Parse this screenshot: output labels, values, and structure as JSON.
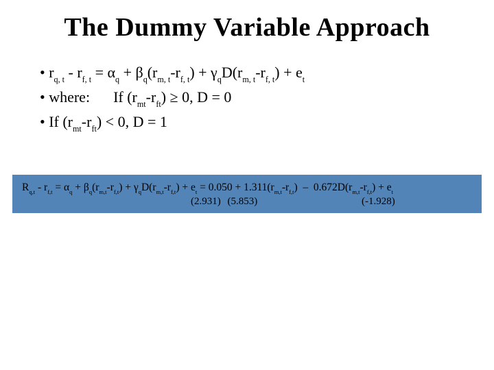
{
  "title": "The Dummy Variable Approach",
  "bullets": {
    "eq_main": "r<span class=\"sub\">q, t</span> - r<span class=\"sub\">f, t</span> = α<span class=\"sub\">q</span> + β<span class=\"sub\">q</span>(r<span class=\"sub\">m, t</span>-r<span class=\"sub\">f, t</span>) + γ<span class=\"sub\">q</span>D(r<span class=\"sub\">m, t</span>-r<span class=\"sub\">f, t</span>) + e<span class=\"sub\">t</span>",
    "where": "where:<span class=\"indent-if\">If (r<span class=\"sub\">mt</span>-r<span class=\"sub\">ft</span>) ≥ 0, D = 0</span>",
    "if2": "If (r<span class=\"sub\">mt</span>-r<span class=\"sub\">ft</span>) < 0, D = 1"
  },
  "equation_box": {
    "background_color": "#5384b7",
    "line1": "R<span class=\"subeq\">q,t</span> - r<span class=\"subeq\">f,t</span> = α<span class=\"subeq\">q</span> + β<span class=\"subeq\">q</span>(r<span class=\"subeq\">m,t</span>-r<span class=\"subeq\">f,t</span>) + γ<span class=\"subeq\">q</span>D(r<span class=\"subeq\">m,t</span>-r<span class=\"subeq\">f,t</span>) + e<span class=\"subeq\">t</span> = 0.050 + 1.311(r<span class=\"subeq\">m,t</span>-r<span class=\"subeq\">f,t</span>) &nbsp;–&nbsp; 0.672D(r<span class=\"subeq\">m,t</span>-r<span class=\"subeq\">f,t</span>) + e<span class=\"subeq\">t</span>",
    "tstats": {
      "g1": "(2.931)",
      "g2": "(5.853)",
      "g3": "(-1.928)"
    }
  },
  "colors": {
    "text": "#000000",
    "background": "#ffffff",
    "box": "#5384b7"
  },
  "fonts": {
    "title_size_pt": 38,
    "body_size_pt": 22,
    "eq_size_pt": 15.5
  }
}
